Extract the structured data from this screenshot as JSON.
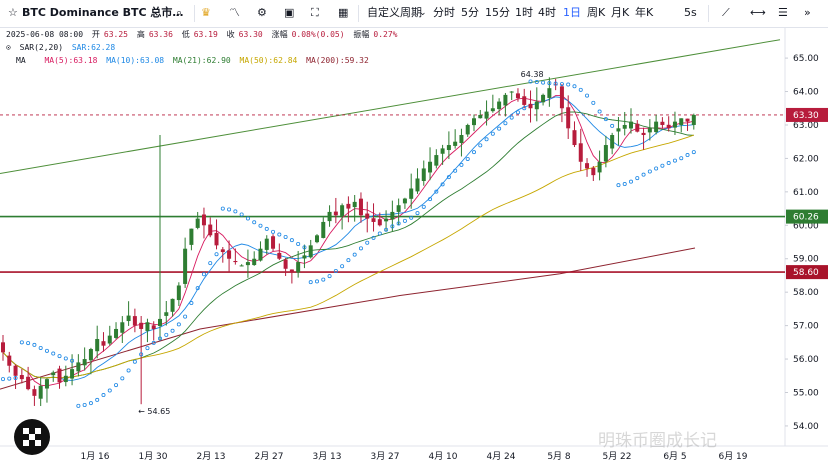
{
  "toolbar": {
    "symbol": "BTC Dominance BTC 总市…",
    "timeframe_menu": "自定义周期",
    "intervals": [
      "分时",
      "5分",
      "15分",
      "1时",
      "4时",
      "1日",
      "周K",
      "月K",
      "年K"
    ],
    "active_interval": "1日",
    "right_interval": "5s"
  },
  "legend": {
    "date": "2025-06-08 08:00",
    "open_label": "开",
    "open": "63.25",
    "high_label": "高",
    "high": "63.36",
    "low_label": "低",
    "low": "63.19",
    "close_label": "收",
    "close": "63.30",
    "change_label": "涨幅",
    "change": "0.08%(0.05)",
    "amp_label": "振幅",
    "amp": "0.27%",
    "sar_name": "SAR(2,20)",
    "sar_value": "SAR:62.28",
    "ma_name": "MA",
    "ma": [
      {
        "label": "MA(5):63.18",
        "color": "#d81b60"
      },
      {
        "label": "MA(10):63.08",
        "color": "#1e88e5"
      },
      {
        "label": "MA(21):62.90",
        "color": "#2e7d32"
      },
      {
        "label": "MA(50):62.84",
        "color": "#c6a700"
      },
      {
        "label": "MA(200):59.32",
        "color": "#8e2430"
      }
    ]
  },
  "chart_data": {
    "type": "candlestick",
    "ylim": [
      53.4,
      65.9
    ],
    "yticks": [
      "54.00",
      "55.00",
      "56.00",
      "57.00",
      "58.00",
      "59.00",
      "60.00",
      "61.00",
      "62.00",
      "63.00",
      "64.00",
      "65.00"
    ],
    "xticks": [
      "1月 16",
      "1月 30",
      "2月 13",
      "2月 27",
      "3月 13",
      "3月 27",
      "4月 10",
      "4月 24",
      "5月 8",
      "5月 22",
      "6月 5",
      "6月 19"
    ],
    "price_labels": [
      {
        "text": "63.30",
        "value": 63.3,
        "color": "#b71c3c"
      },
      {
        "text": "60.26",
        "value": 60.26,
        "color": "#2e7d32"
      },
      {
        "text": "58.60",
        "value": 58.6,
        "color": "#a8132a"
      }
    ],
    "hlines": [
      {
        "value": 60.26,
        "color": "#2e7d32"
      },
      {
        "value": 58.6,
        "color": "#a8132a"
      }
    ],
    "annotations": [
      {
        "text": "64.38",
        "value": 64.38
      },
      {
        "text": "← 54.65",
        "value": 54.65
      }
    ],
    "closes": [
      56.2,
      55.8,
      55.5,
      55.4,
      55.1,
      54.9,
      55.2,
      55.4,
      55.6,
      55.3,
      55.5,
      55.7,
      55.9,
      56.0,
      56.3,
      56.6,
      56.4,
      56.7,
      56.9,
      57.1,
      57.3,
      57.0,
      56.9,
      57.1,
      56.9,
      57.2,
      57.4,
      57.8,
      58.2,
      59.3,
      59.9,
      60.2,
      60.0,
      59.7,
      59.4,
      59.2,
      59.0,
      58.9,
      58.8,
      58.9,
      59.0,
      59.3,
      59.6,
      59.3,
      59.0,
      58.7,
      58.6,
      58.9,
      59.1,
      59.4,
      59.7,
      60.1,
      60.4,
      60.3,
      60.6,
      60.5,
      60.7,
      60.3,
      60.2,
      60.1,
      60.0,
      60.2,
      60.4,
      60.6,
      60.8,
      61.1,
      61.4,
      61.7,
      61.9,
      62.1,
      62.3,
      62.4,
      62.5,
      62.7,
      63.0,
      63.2,
      63.3,
      63.4,
      63.5,
      63.7,
      63.9,
      64.0,
      63.8,
      63.6,
      63.5,
      63.7,
      63.9,
      64.1,
      64.2,
      63.5,
      62.9,
      62.4,
      61.9,
      61.7,
      61.5,
      61.9,
      62.4,
      62.7,
      62.9,
      63.0,
      63.1,
      62.8,
      62.7,
      62.9,
      63.1,
      63.0,
      62.9,
      63.1,
      63.2,
      63.1,
      63.3
    ]
  },
  "watermark": "明珠币圈成长记"
}
